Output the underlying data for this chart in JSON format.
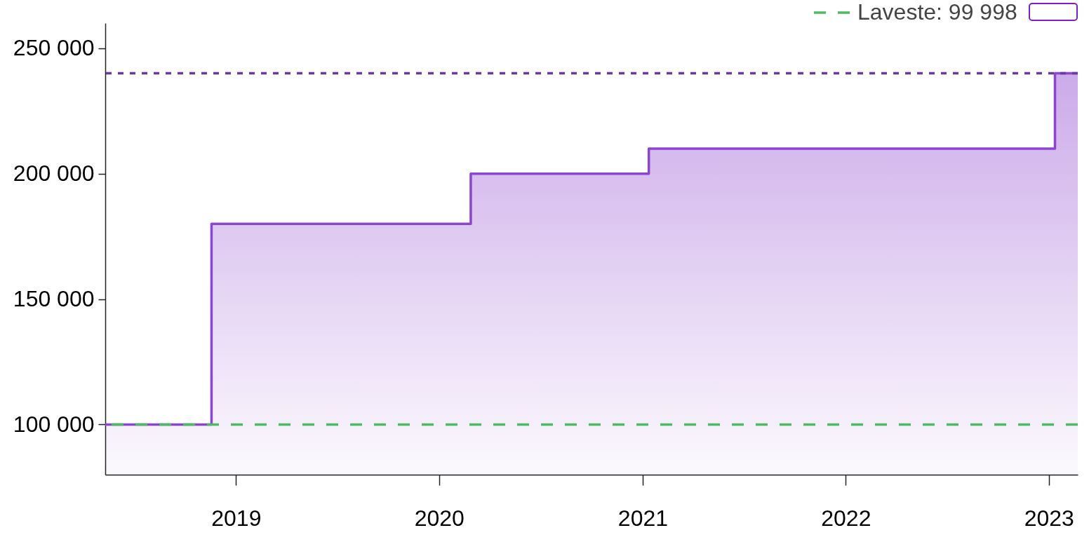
{
  "chart_data": {
    "type": "area",
    "x": [
      "2018-05-11",
      "2018-11-18",
      "2018-11-18",
      "2020-02-27",
      "2020-02-27",
      "2021-01-12",
      "2021-01-12",
      "2023-01-12",
      "2023-01-12",
      "2023-02-22"
    ],
    "series": [
      {
        "color": "#8d44cf",
        "values": [
          99998,
          99998,
          180000,
          180000,
          200000,
          200000,
          210000,
          210000,
          240000,
          240000
        ]
      }
    ],
    "xlim": [
      "2018-05-11",
      "2023-02-22"
    ],
    "xticks": [
      "2019",
      "2020",
      "2021",
      "2022",
      "2023"
    ],
    "ylim": [
      80000,
      260000
    ],
    "yticks": [
      {
        "value": 100000,
        "label": "100 000"
      },
      {
        "value": 150000,
        "label": "150 000"
      },
      {
        "value": 200000,
        "label": "200 000"
      },
      {
        "value": 250000,
        "label": "250 000"
      }
    ],
    "ref_lines": [
      {
        "axis": "y",
        "value": 99998,
        "label": "Laveste: 99 998",
        "color": "#4cbb63",
        "line_style": "dashed"
      },
      {
        "axis": "y",
        "value": 240000,
        "color": "#6a3a9c",
        "line_style": "dotted"
      }
    ]
  }
}
